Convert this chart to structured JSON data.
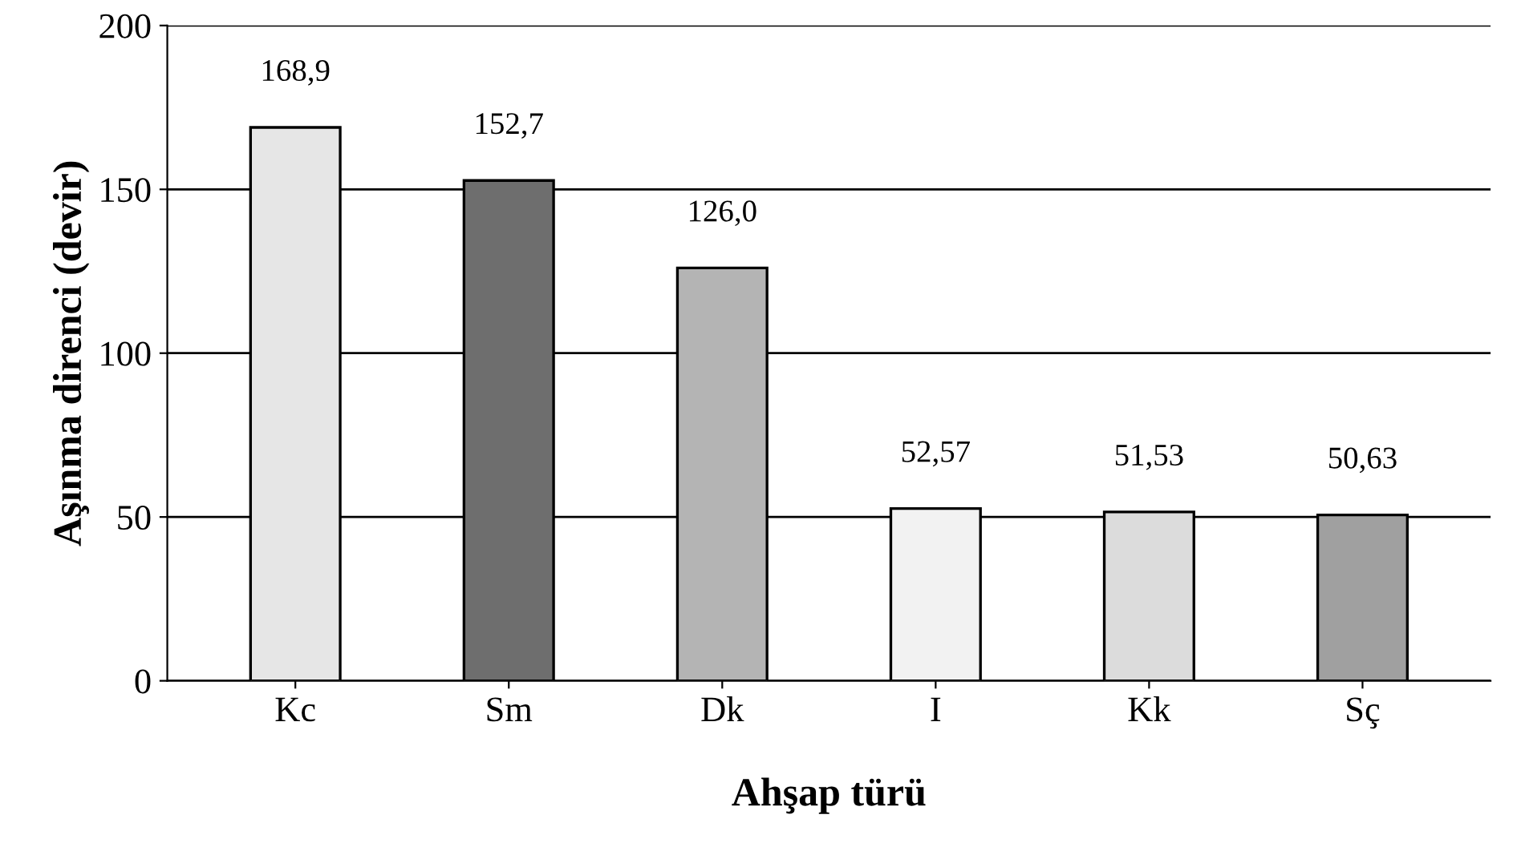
{
  "chart_data": {
    "type": "bar",
    "xlabel": "Ahşap türü",
    "ylabel": "Aşınma direnci (devir)",
    "categories": [
      "Kc",
      "Sm",
      "Dk",
      "I",
      "Kk",
      "Sç"
    ],
    "values": [
      168.9,
      152.7,
      126.0,
      52.57,
      51.53,
      50.63
    ],
    "value_labels": [
      "168,9",
      "152,7",
      "126,0",
      "52,57",
      "51,53",
      "50,63"
    ],
    "colors": [
      "#e6e6e6",
      "#6e6e6e",
      "#b4b4b4",
      "#f2f2f2",
      "#dcdcdc",
      "#a0a0a0"
    ],
    "ylim": [
      0,
      200
    ],
    "yticks": [
      0,
      50,
      100,
      150,
      200
    ],
    "grid": "y"
  }
}
